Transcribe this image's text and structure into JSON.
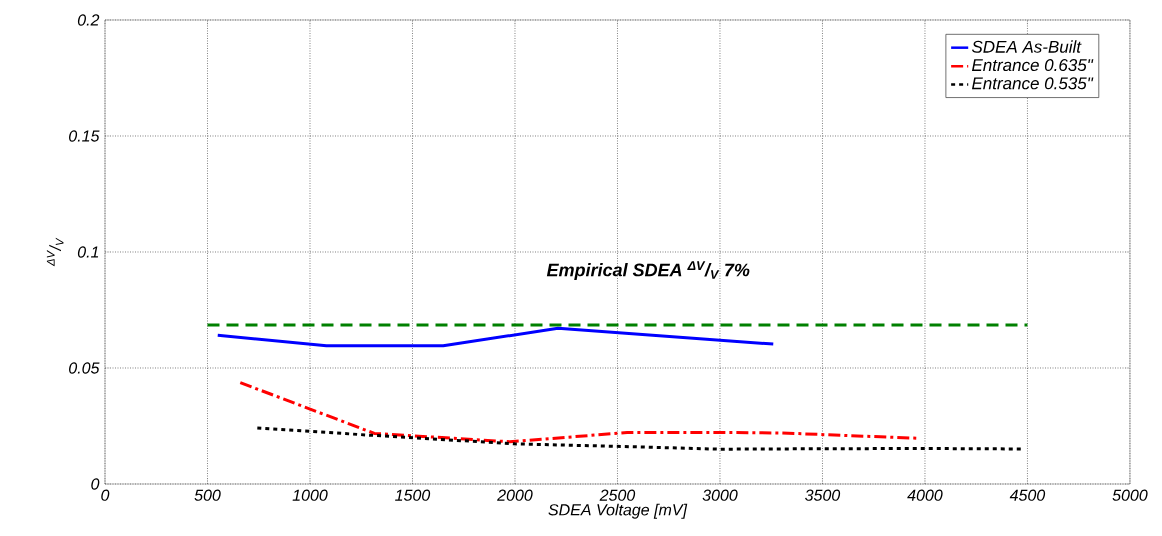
{
  "chart_data": {
    "type": "line",
    "xlabel": "SDEA Voltage [mV]",
    "ylabel": "$^{ΔV}$/$_{V}$",
    "xlim": [
      0,
      5000
    ],
    "xticks": [
      0,
      500,
      1000,
      1500,
      2000,
      2500,
      3000,
      3500,
      4000,
      4500,
      5000
    ],
    "ylim": [
      0,
      0.2
    ],
    "yticks": [
      0,
      0.05,
      0.1,
      0.15,
      0.2
    ],
    "grid": true,
    "legend": "top right",
    "annotations": [
      "Empirical SDEA $^{ΔV}$/$_{V}$ 7%"
    ],
    "series": [
      {
        "name": "SDEA As-Built",
        "color": "#0000ff",
        "line_style": "solid",
        "x": [
          550,
          1080,
          1650,
          2210,
          3260
        ],
        "values": [
          0.0641,
          0.0596,
          0.0596,
          0.0671,
          0.0603
        ]
      },
      {
        "name": "Entrance 0.635\"",
        "color": "#ff0000",
        "line_style": "dashdot",
        "x": [
          660,
          1314,
          1975,
          2547,
          3000,
          3300,
          3967
        ],
        "values": [
          0.0437,
          0.0218,
          0.0182,
          0.0222,
          0.0222,
          0.022,
          0.0197
        ]
      },
      {
        "name": "Entrance 0.535\"",
        "color": "#000000",
        "line_style": "dotted",
        "x": [
          743,
          1300,
          2000,
          2600,
          3000,
          3500,
          4000,
          4472
        ],
        "values": [
          0.0241,
          0.021,
          0.0173,
          0.016,
          0.015,
          0.0152,
          0.0153,
          0.0151
        ]
      },
      {
        "color": "#008000",
        "line_style": "dashed",
        "x": [
          500,
          4500
        ],
        "values": [
          0.0685,
          0.0685
        ]
      }
    ]
  }
}
